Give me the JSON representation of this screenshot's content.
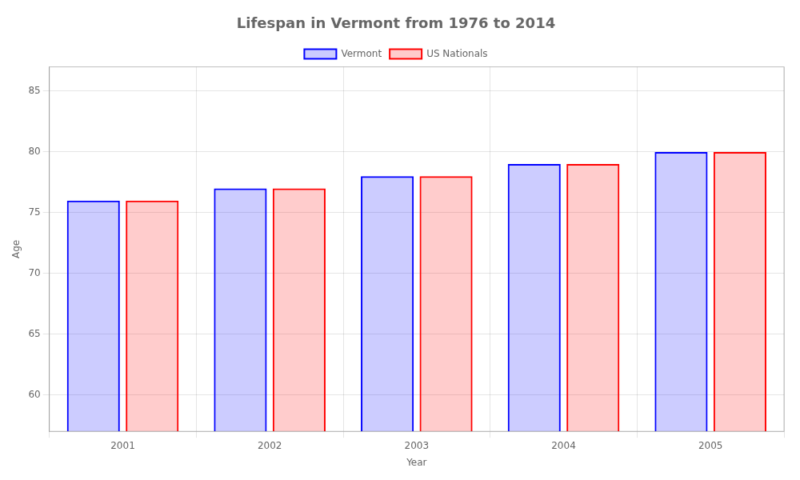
{
  "chart_data": {
    "type": "bar",
    "title": "Lifespan in Vermont from 1976 to 2014",
    "xlabel": "Year",
    "ylabel": "Age",
    "categories": [
      "2001",
      "2002",
      "2003",
      "2004",
      "2005"
    ],
    "series": [
      {
        "name": "Vermont",
        "color": "#0000ff",
        "values": [
          76,
          77,
          78,
          79,
          80
        ]
      },
      {
        "name": "US Nationals",
        "color": "#ff0000",
        "values": [
          76,
          77,
          78,
          79,
          80
        ]
      }
    ],
    "ylim": [
      57,
      87
    ],
    "yticks": [
      60,
      65,
      70,
      75,
      80,
      85
    ],
    "grid": true,
    "legend": "top"
  }
}
